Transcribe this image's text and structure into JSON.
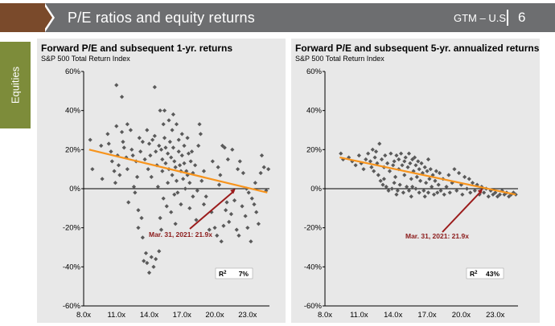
{
  "header": {
    "title": "P/E ratios and equity returns",
    "gtm": "GTM – U.S.",
    "page": "6"
  },
  "sidebar": {
    "tab_label": "Equities"
  },
  "colors": {
    "scatter": "#5a5a5a",
    "trend": "#f7941d",
    "arrow": "#9b1c1c",
    "panel_bg": "#e8e8e8",
    "header_bg": "#6d6e70",
    "side_tab": "#7d8c3a"
  },
  "chart_data": [
    {
      "type": "scatter",
      "title": "Forward P/E and subsequent 1-yr. returns",
      "subtitle": "S&P 500 Total Return Index",
      "xlim": [
        8,
        25
      ],
      "ylim": [
        -60,
        60
      ],
      "x_ticks": [
        "8.0x",
        "11.0x",
        "14.0x",
        "17.0x",
        "20.0x",
        "23.0x"
      ],
      "y_ticks": [
        "60%",
        "40%",
        "20%",
        "0%",
        "-20%",
        "-40%",
        "-60%"
      ],
      "trend": {
        "x": [
          8.5,
          24.8
        ],
        "y": [
          20,
          -2
        ]
      },
      "annotation": {
        "text": "Mar. 31, 2021: 21.9x",
        "x": 21.9,
        "y": 0
      },
      "r2": {
        "label": "R",
        "sup": "2",
        "value": "7%"
      },
      "points": [
        [
          8.6,
          25
        ],
        [
          8.8,
          10
        ],
        [
          9.6,
          22
        ],
        [
          9.7,
          5
        ],
        [
          10.2,
          28
        ],
        [
          10.3,
          23
        ],
        [
          10.5,
          19
        ],
        [
          10.6,
          14
        ],
        [
          10.8,
          9
        ],
        [
          10.9,
          3
        ],
        [
          11.0,
          53
        ],
        [
          11.0,
          32
        ],
        [
          11.1,
          17
        ],
        [
          11.2,
          12
        ],
        [
          11.3,
          7
        ],
        [
          11.5,
          47
        ],
        [
          11.5,
          29
        ],
        [
          11.6,
          24
        ],
        [
          11.7,
          21
        ],
        [
          11.9,
          16
        ],
        [
          12.0,
          33
        ],
        [
          12.0,
          10
        ],
        [
          12.1,
          -7
        ],
        [
          12.3,
          30
        ],
        [
          12.4,
          20
        ],
        [
          12.5,
          17
        ],
        [
          12.6,
          1
        ],
        [
          12.7,
          -2
        ],
        [
          12.8,
          14
        ],
        [
          12.9,
          6
        ],
        [
          13.0,
          -11
        ],
        [
          13.0,
          -20
        ],
        [
          13.1,
          26
        ],
        [
          13.2,
          19
        ],
        [
          13.3,
          -15
        ],
        [
          13.4,
          -25
        ],
        [
          13.4,
          24
        ],
        [
          13.5,
          -37
        ],
        [
          13.6,
          15
        ],
        [
          13.7,
          -33
        ],
        [
          13.8,
          30
        ],
        [
          13.8,
          -38
        ],
        [
          13.9,
          10
        ],
        [
          14.0,
          -43
        ],
        [
          14.0,
          23
        ],
        [
          14.1,
          17
        ],
        [
          14.2,
          -35
        ],
        [
          14.2,
          6
        ],
        [
          14.3,
          25
        ],
        [
          14.4,
          -40
        ],
        [
          14.5,
          52
        ],
        [
          14.5,
          27
        ],
        [
          14.6,
          -36
        ],
        [
          14.6,
          19
        ],
        [
          14.7,
          12
        ],
        [
          14.8,
          1
        ],
        [
          14.9,
          -32
        ],
        [
          14.9,
          22
        ],
        [
          15.0,
          40
        ],
        [
          15.0,
          -15
        ],
        [
          15.1,
          20
        ],
        [
          15.2,
          15
        ],
        [
          15.2,
          9
        ],
        [
          15.3,
          33
        ],
        [
          15.3,
          -5
        ],
        [
          15.4,
          40
        ],
        [
          15.4,
          26
        ],
        [
          15.5,
          21
        ],
        [
          15.5,
          13
        ],
        [
          15.6,
          -9
        ],
        [
          15.7,
          3
        ],
        [
          15.7,
          18
        ],
        [
          15.8,
          35
        ],
        [
          15.8,
          10
        ],
        [
          15.9,
          24
        ],
        [
          16.0,
          16
        ],
        [
          16.0,
          -12
        ],
        [
          16.1,
          30
        ],
        [
          16.1,
          7
        ],
        [
          16.2,
          38
        ],
        [
          16.2,
          21
        ],
        [
          16.3,
          14
        ],
        [
          16.4,
          -18
        ],
        [
          16.4,
          11
        ],
        [
          16.5,
          33
        ],
        [
          16.5,
          4
        ],
        [
          16.6,
          -2
        ],
        [
          16.7,
          19
        ],
        [
          16.7,
          25
        ],
        [
          16.8,
          12
        ],
        [
          16.9,
          9
        ],
        [
          16.9,
          -8
        ],
        [
          17.0,
          28
        ],
        [
          17.0,
          17
        ],
        [
          17.1,
          5
        ],
        [
          17.2,
          22
        ],
        [
          17.2,
          13
        ],
        [
          17.3,
          0
        ],
        [
          17.4,
          9
        ],
        [
          17.5,
          26
        ],
        [
          17.5,
          7
        ],
        [
          17.6,
          18
        ],
        [
          17.7,
          -10
        ],
        [
          17.7,
          3
        ],
        [
          17.8,
          14
        ],
        [
          17.9,
          19
        ],
        [
          18.0,
          -4
        ],
        [
          18.0,
          8
        ],
        [
          18.2,
          12
        ],
        [
          18.3,
          -16
        ],
        [
          18.4,
          -1
        ],
        [
          18.5,
          22
        ],
        [
          18.6,
          33
        ],
        [
          18.7,
          28
        ],
        [
          18.8,
          4
        ],
        [
          19.0,
          -8
        ],
        [
          19.0,
          9
        ],
        [
          19.2,
          -4
        ],
        [
          19.5,
          -21
        ],
        [
          19.7,
          -12
        ],
        [
          19.8,
          14
        ],
        [
          20.0,
          -20
        ],
        [
          20.2,
          -24
        ],
        [
          20.3,
          11
        ],
        [
          20.4,
          2
        ],
        [
          20.5,
          7
        ],
        [
          20.6,
          -27
        ],
        [
          20.7,
          22
        ],
        [
          20.8,
          -19
        ],
        [
          20.9,
          21
        ],
        [
          21.0,
          -11
        ],
        [
          21.1,
          -7
        ],
        [
          21.2,
          15
        ],
        [
          21.3,
          -17
        ],
        [
          21.5,
          -13
        ],
        [
          21.6,
          20
        ],
        [
          21.8,
          -6
        ],
        [
          22.0,
          -21
        ],
        [
          22.1,
          10
        ],
        [
          22.2,
          -24
        ],
        [
          22.3,
          14
        ],
        [
          22.5,
          -9
        ],
        [
          22.6,
          8
        ],
        [
          22.8,
          -14
        ],
        [
          23.0,
          -20
        ],
        [
          23.1,
          -2
        ],
        [
          23.3,
          -27
        ],
        [
          23.4,
          -5
        ],
        [
          23.6,
          -8
        ],
        [
          23.8,
          -12
        ],
        [
          24.0,
          -18
        ],
        [
          24.2,
          8
        ],
        [
          24.3,
          17
        ],
        [
          24.5,
          11
        ],
        [
          24.7,
          -1
        ],
        [
          24.9,
          10
        ],
        [
          23.7,
          3
        ],
        [
          22.9,
          0
        ],
        [
          16.3,
          -3
        ],
        [
          15.1,
          -21
        ]
      ]
    },
    {
      "type": "scatter",
      "title": "Forward P/E and subsequent 5-yr. annualized returns",
      "subtitle": "S&P 500 Total Return Index",
      "xlim": [
        8,
        25
      ],
      "ylim": [
        -60,
        60
      ],
      "x_ticks": [
        "8.0x",
        "11.0x",
        "14.0x",
        "17.0x",
        "20.0x",
        "23.0x"
      ],
      "y_ticks": [
        "60%",
        "40%",
        "20%",
        "0%",
        "-20%",
        "-40%",
        "-60%"
      ],
      "trend": {
        "x": [
          9.3,
          24.8
        ],
        "y": [
          16,
          -3
        ]
      },
      "annotation": {
        "text": "Mar. 31, 2021: 21.9x",
        "x": 21.9,
        "y": 0
      },
      "r2": {
        "label": "R",
        "sup": "2",
        "value": "43%"
      },
      "points": [
        [
          9.4,
          18
        ],
        [
          9.6,
          15
        ],
        [
          10.1,
          16
        ],
        [
          10.4,
          14
        ],
        [
          10.7,
          12
        ],
        [
          11.0,
          17
        ],
        [
          11.2,
          13
        ],
        [
          11.4,
          10
        ],
        [
          11.6,
          15
        ],
        [
          11.8,
          18
        ],
        [
          12.0,
          14
        ],
        [
          12.1,
          11
        ],
        [
          12.3,
          9
        ],
        [
          12.4,
          16
        ],
        [
          12.5,
          19
        ],
        [
          12.6,
          13
        ],
        [
          12.7,
          7
        ],
        [
          12.8,
          23
        ],
        [
          12.9,
          4
        ],
        [
          13.0,
          15
        ],
        [
          13.1,
          2
        ],
        [
          13.2,
          11
        ],
        [
          13.3,
          17
        ],
        [
          13.4,
          1
        ],
        [
          13.5,
          13
        ],
        [
          13.6,
          -1
        ],
        [
          13.7,
          9
        ],
        [
          13.8,
          18
        ],
        [
          13.9,
          0
        ],
        [
          14.0,
          12
        ],
        [
          14.1,
          14
        ],
        [
          14.1,
          3
        ],
        [
          14.2,
          6
        ],
        [
          14.3,
          17
        ],
        [
          14.4,
          -1
        ],
        [
          14.5,
          10
        ],
        [
          14.5,
          15
        ],
        [
          14.6,
          2
        ],
        [
          14.7,
          18
        ],
        [
          14.8,
          12
        ],
        [
          14.9,
          -2
        ],
        [
          15.0,
          14
        ],
        [
          15.0,
          7
        ],
        [
          15.1,
          16
        ],
        [
          15.2,
          1
        ],
        [
          15.3,
          11
        ],
        [
          15.4,
          18
        ],
        [
          15.4,
          -1
        ],
        [
          15.5,
          13
        ],
        [
          15.6,
          5
        ],
        [
          15.7,
          15
        ],
        [
          15.7,
          1
        ],
        [
          15.8,
          9
        ],
        [
          15.9,
          16
        ],
        [
          16.0,
          0
        ],
        [
          16.0,
          12
        ],
        [
          16.1,
          6
        ],
        [
          16.2,
          14
        ],
        [
          16.3,
          -2
        ],
        [
          16.3,
          10
        ],
        [
          16.4,
          4
        ],
        [
          16.5,
          13
        ],
        [
          16.6,
          8
        ],
        [
          16.7,
          -1
        ],
        [
          16.8,
          11
        ],
        [
          16.9,
          3
        ],
        [
          17.0,
          9
        ],
        [
          17.1,
          15
        ],
        [
          17.1,
          -2
        ],
        [
          17.2,
          5
        ],
        [
          17.3,
          10
        ],
        [
          17.4,
          1
        ],
        [
          17.5,
          7
        ],
        [
          17.6,
          -3
        ],
        [
          17.7,
          4
        ],
        [
          17.8,
          9
        ],
        [
          17.9,
          -2
        ],
        [
          18.0,
          2
        ],
        [
          18.1,
          8
        ],
        [
          18.2,
          -1
        ],
        [
          18.4,
          5
        ],
        [
          18.5,
          -3
        ],
        [
          18.7,
          1
        ],
        [
          18.9,
          7
        ],
        [
          19.0,
          -2
        ],
        [
          19.2,
          3
        ],
        [
          19.4,
          10
        ],
        [
          19.6,
          -1
        ],
        [
          19.8,
          8
        ],
        [
          20.0,
          2
        ],
        [
          20.1,
          -3
        ],
        [
          20.3,
          6
        ],
        [
          20.5,
          0
        ],
        [
          20.7,
          5
        ],
        [
          20.8,
          -2
        ],
        [
          21.0,
          3
        ],
        [
          21.2,
          -1
        ],
        [
          21.4,
          2
        ],
        [
          21.6,
          -3
        ],
        [
          21.8,
          1
        ],
        [
          22.0,
          -2
        ],
        [
          22.2,
          0
        ],
        [
          22.4,
          -4
        ],
        [
          22.6,
          -1
        ],
        [
          22.8,
          -3
        ],
        [
          23.0,
          -2
        ],
        [
          23.2,
          -4
        ],
        [
          23.4,
          -3
        ],
        [
          23.6,
          -1
        ],
        [
          23.8,
          -3
        ],
        [
          24.0,
          -2
        ],
        [
          24.2,
          -4
        ],
        [
          24.4,
          -3
        ],
        [
          24.6,
          -2
        ],
        [
          24.8,
          -3
        ],
        [
          14.3,
          -3
        ],
        [
          15.6,
          -4
        ],
        [
          16.8,
          -4
        ],
        [
          13.2,
          5
        ],
        [
          12.2,
          20
        ]
      ]
    }
  ]
}
